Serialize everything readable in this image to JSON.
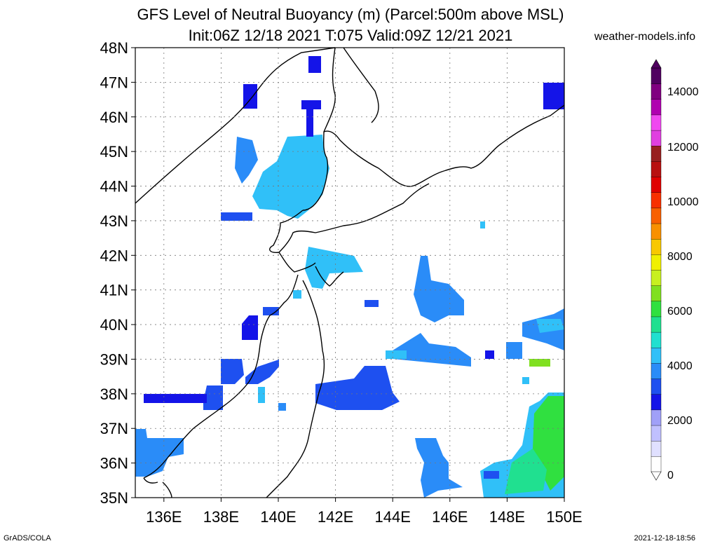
{
  "header": {
    "title_line1": "GFS Level of Neutral Buoyancy (m) (Parcel:500m above MSL)",
    "title_line2": "Init:06Z 12/18 2021 T:075 Valid:09Z 12/21 2021",
    "site": "weather-models.info"
  },
  "footer": {
    "left": "GrADS/COLA",
    "right": "2021-12-18-18:56"
  },
  "map": {
    "lat_labels": [
      "48N",
      "47N",
      "46N",
      "45N",
      "44N",
      "43N",
      "42N",
      "41N",
      "40N",
      "39N",
      "38N",
      "37N",
      "36N",
      "35N"
    ],
    "lon_labels": [
      "136E",
      "138E",
      "140E",
      "142E",
      "144E",
      "146E",
      "148E",
      "150E"
    ],
    "lat_range": [
      35,
      48
    ],
    "lon_range": [
      135,
      150
    ]
  },
  "colorbar": {
    "labels": [
      "14000",
      "12000",
      "10000",
      "8000",
      "6000",
      "4000",
      "2000",
      "0"
    ],
    "colors": [
      "#ffffff",
      "#e0e0ff",
      "#c0c0ff",
      "#a0a0f8",
      "#1414e8",
      "#1e50f0",
      "#2a8cf8",
      "#30c0f8",
      "#20e0d0",
      "#20e090",
      "#30e040",
      "#80e020",
      "#c8f020",
      "#f0f000",
      "#f8c800",
      "#f89000",
      "#f86000",
      "#f83000",
      "#e00000",
      "#b81010",
      "#982020",
      "#e040e0",
      "#f048f0",
      "#b000b0",
      "#800080",
      "#500060"
    ]
  }
}
